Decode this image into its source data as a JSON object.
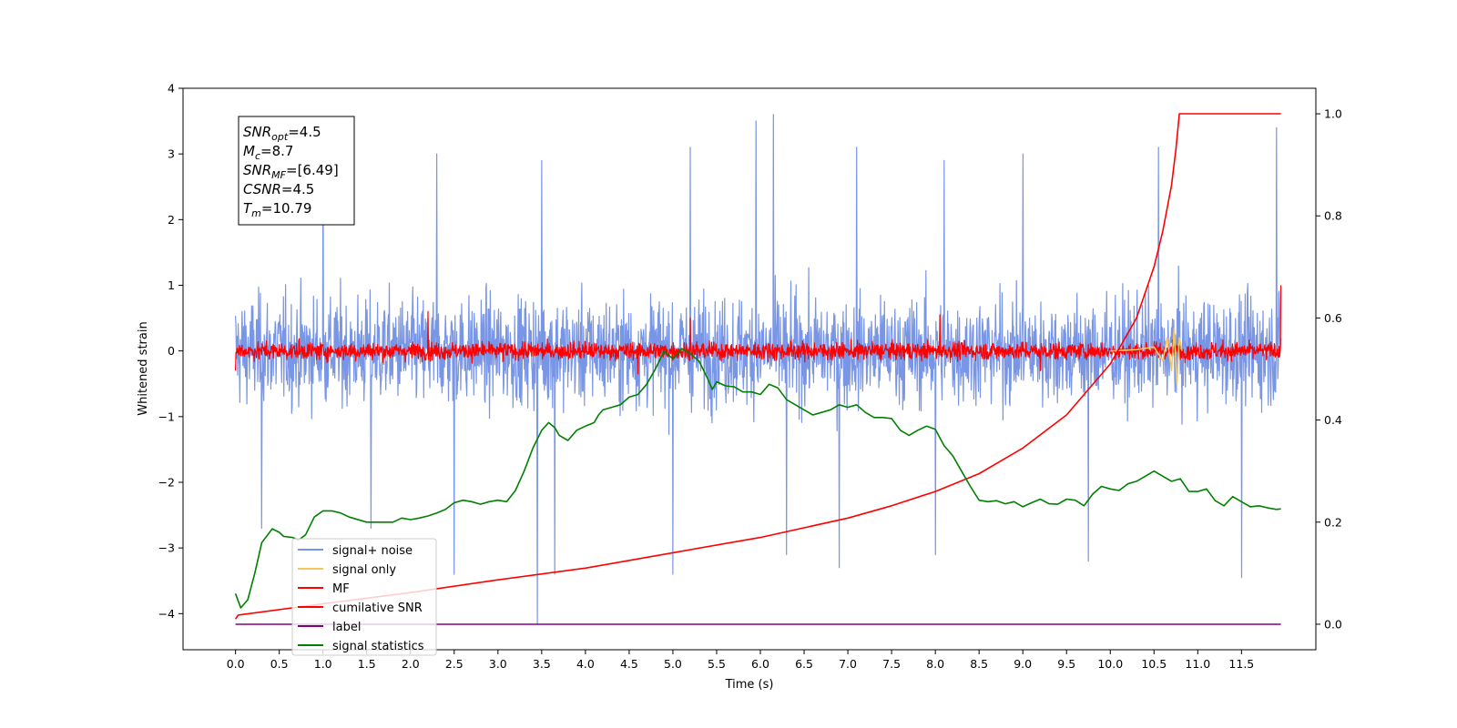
{
  "chart_data": {
    "type": "line",
    "xlabel": "Time (s)",
    "ylabel": "Whitened strain",
    "xlim": [
      -0.6,
      12.35
    ],
    "ylim": [
      -4.55,
      4.0
    ],
    "y2lim": [
      -0.05,
      1.05
    ],
    "x_ticks": [
      0.0,
      0.5,
      1.0,
      1.5,
      2.0,
      2.5,
      3.0,
      3.5,
      4.0,
      4.5,
      5.0,
      5.5,
      6.0,
      6.5,
      7.0,
      7.5,
      8.0,
      8.5,
      9.0,
      9.5,
      10.0,
      10.5,
      11.0,
      11.5
    ],
    "x_tick_labels": [
      "0.0",
      "0.5",
      "1.0",
      "1.5",
      "2.0",
      "2.5",
      "3.0",
      "3.5",
      "4.0",
      "4.5",
      "5.0",
      "5.5",
      "6.0",
      "6.5",
      "7.0",
      "7.5",
      "8.0",
      "8.5",
      "9.0",
      "9.5",
      "10.0",
      "10.5",
      "11.0",
      "11.5"
    ],
    "y_ticks": [
      4,
      3,
      2,
      1,
      0,
      -1,
      -2,
      -3,
      -4
    ],
    "y_tick_labels": [
      "4",
      "3",
      "2",
      "1",
      "0",
      "−1",
      "−2",
      "−3",
      "−4"
    ],
    "y2_ticks": [
      0.0,
      0.2,
      0.4,
      0.6,
      0.8,
      1.0
    ],
    "y2_tick_labels": [
      "0.0",
      "0.2",
      "0.4",
      "0.6",
      "0.8",
      "1.0"
    ],
    "grid": false,
    "legend_position": "lower-left",
    "annotation": [
      {
        "base": "SNR",
        "sub": "opt",
        "value": "=4.5"
      },
      {
        "base": "M",
        "sub": "c",
        "value": "=8.7"
      },
      {
        "base": "SNR",
        "sub": "MF",
        "value": "=[6.49]"
      },
      {
        "base": "CSNR",
        "sub": "",
        "value": "=4.5"
      },
      {
        "base": "T",
        "sub": "m",
        "value": "=10.79"
      }
    ],
    "series": [
      {
        "name": "signal+ noise",
        "color": "#7895e6",
        "axis": "left",
        "kind": "noise",
        "range": [
          0.0,
          11.95
        ],
        "amplitude": 1.1,
        "spikes_up": [
          [
            1.0,
            2.9
          ],
          [
            2.3,
            3.0
          ],
          [
            3.5,
            2.9
          ],
          [
            5.2,
            3.1
          ],
          [
            5.95,
            3.5
          ],
          [
            6.15,
            3.6
          ],
          [
            7.1,
            3.1
          ],
          [
            8.1,
            2.9
          ],
          [
            9.0,
            3.0
          ],
          [
            10.55,
            3.1
          ],
          [
            11.9,
            3.4
          ]
        ],
        "spikes_down": [
          [
            0.3,
            -2.7
          ],
          [
            1.55,
            -2.7
          ],
          [
            2.5,
            -3.4
          ],
          [
            3.45,
            -4.15
          ],
          [
            3.65,
            -3.4
          ],
          [
            5.0,
            -3.4
          ],
          [
            6.3,
            -3.1
          ],
          [
            6.9,
            -3.3
          ],
          [
            8.0,
            -3.1
          ],
          [
            9.75,
            -3.2
          ],
          [
            11.5,
            -3.45
          ]
        ]
      },
      {
        "name": "signal only",
        "color": "#f5c55e",
        "axis": "left",
        "kind": "chirp",
        "points": [
          [
            10.0,
            0.0
          ],
          [
            10.3,
            0.02
          ],
          [
            10.5,
            0.06
          ],
          [
            10.6,
            -0.15
          ],
          [
            10.65,
            0.2
          ],
          [
            10.7,
            -0.3
          ],
          [
            10.73,
            0.35
          ],
          [
            10.76,
            -0.5
          ],
          [
            10.79,
            0.2
          ],
          [
            10.82,
            0.0
          ]
        ]
      },
      {
        "name": "MF",
        "color": "#ff0000",
        "axis": "left",
        "kind": "noise",
        "range": [
          0.0,
          11.95
        ],
        "amplitude": 0.18,
        "spikes_up": [
          [
            0.0,
            0.9
          ],
          [
            2.2,
            0.6
          ],
          [
            5.2,
            0.5
          ],
          [
            8.05,
            0.55
          ],
          [
            11.95,
            1.0
          ]
        ],
        "spikes_down": [
          [
            0.0,
            -0.3
          ],
          [
            4.6,
            -0.35
          ],
          [
            9.2,
            -0.3
          ]
        ]
      },
      {
        "name": "cumilative SNR",
        "color": "#ff0000",
        "axis": "right",
        "kind": "line",
        "points": [
          [
            0.0,
            0.01
          ],
          [
            0.03,
            0.018
          ],
          [
            1.0,
            0.04
          ],
          [
            2.0,
            0.062
          ],
          [
            3.0,
            0.087
          ],
          [
            4.0,
            0.11
          ],
          [
            5.0,
            0.14
          ],
          [
            6.0,
            0.17
          ],
          [
            7.0,
            0.208
          ],
          [
            7.5,
            0.232
          ],
          [
            8.0,
            0.26
          ],
          [
            8.5,
            0.295
          ],
          [
            9.0,
            0.345
          ],
          [
            9.5,
            0.41
          ],
          [
            10.0,
            0.51
          ],
          [
            10.3,
            0.6
          ],
          [
            10.5,
            0.7
          ],
          [
            10.6,
            0.77
          ],
          [
            10.7,
            0.86
          ],
          [
            10.75,
            0.93
          ],
          [
            10.79,
            1.0
          ],
          [
            11.95,
            1.0
          ]
        ]
      },
      {
        "name": "label",
        "color": "#800080",
        "axis": "right",
        "kind": "line",
        "points": [
          [
            0.0,
            0.0
          ],
          [
            11.95,
            0.0
          ]
        ]
      },
      {
        "name": "signal statistics",
        "color": "#008000",
        "axis": "right",
        "kind": "line",
        "points": [
          [
            0.0,
            0.06
          ],
          [
            0.06,
            0.032
          ],
          [
            0.14,
            0.048
          ],
          [
            0.22,
            0.1
          ],
          [
            0.3,
            0.16
          ],
          [
            0.42,
            0.187
          ],
          [
            0.5,
            0.18
          ],
          [
            0.55,
            0.172
          ],
          [
            0.65,
            0.17
          ],
          [
            0.72,
            0.165
          ],
          [
            0.8,
            0.175
          ],
          [
            0.9,
            0.21
          ],
          [
            1.0,
            0.222
          ],
          [
            1.1,
            0.222
          ],
          [
            1.2,
            0.218
          ],
          [
            1.3,
            0.21
          ],
          [
            1.5,
            0.2
          ],
          [
            1.6,
            0.2
          ],
          [
            1.8,
            0.2
          ],
          [
            1.9,
            0.208
          ],
          [
            2.0,
            0.205
          ],
          [
            2.1,
            0.208
          ],
          [
            2.2,
            0.212
          ],
          [
            2.3,
            0.218
          ],
          [
            2.4,
            0.225
          ],
          [
            2.5,
            0.238
          ],
          [
            2.6,
            0.243
          ],
          [
            2.7,
            0.24
          ],
          [
            2.8,
            0.235
          ],
          [
            2.9,
            0.24
          ],
          [
            3.0,
            0.243
          ],
          [
            3.1,
            0.24
          ],
          [
            3.2,
            0.262
          ],
          [
            3.3,
            0.3
          ],
          [
            3.4,
            0.345
          ],
          [
            3.5,
            0.38
          ],
          [
            3.58,
            0.395
          ],
          [
            3.65,
            0.385
          ],
          [
            3.7,
            0.37
          ],
          [
            3.8,
            0.36
          ],
          [
            3.9,
            0.38
          ],
          [
            4.0,
            0.388
          ],
          [
            4.1,
            0.395
          ],
          [
            4.15,
            0.41
          ],
          [
            4.2,
            0.42
          ],
          [
            4.3,
            0.425
          ],
          [
            4.4,
            0.43
          ],
          [
            4.5,
            0.445
          ],
          [
            4.6,
            0.45
          ],
          [
            4.7,
            0.47
          ],
          [
            4.8,
            0.5
          ],
          [
            4.9,
            0.535
          ],
          [
            5.0,
            0.52
          ],
          [
            5.1,
            0.54
          ],
          [
            5.2,
            0.53
          ],
          [
            5.3,
            0.515
          ],
          [
            5.4,
            0.48
          ],
          [
            5.45,
            0.46
          ],
          [
            5.5,
            0.475
          ],
          [
            5.6,
            0.467
          ],
          [
            5.7,
            0.465
          ],
          [
            5.8,
            0.455
          ],
          [
            5.9,
            0.455
          ],
          [
            6.0,
            0.45
          ],
          [
            6.1,
            0.47
          ],
          [
            6.2,
            0.463
          ],
          [
            6.3,
            0.44
          ],
          [
            6.4,
            0.43
          ],
          [
            6.5,
            0.42
          ],
          [
            6.6,
            0.41
          ],
          [
            6.7,
            0.415
          ],
          [
            6.8,
            0.42
          ],
          [
            6.9,
            0.43
          ],
          [
            7.0,
            0.425
          ],
          [
            7.1,
            0.43
          ],
          [
            7.2,
            0.415
          ],
          [
            7.3,
            0.405
          ],
          [
            7.4,
            0.405
          ],
          [
            7.5,
            0.403
          ],
          [
            7.6,
            0.38
          ],
          [
            7.7,
            0.37
          ],
          [
            7.8,
            0.38
          ],
          [
            7.9,
            0.388
          ],
          [
            8.0,
            0.382
          ],
          [
            8.1,
            0.35
          ],
          [
            8.2,
            0.33
          ],
          [
            8.3,
            0.3
          ],
          [
            8.4,
            0.27
          ],
          [
            8.5,
            0.243
          ],
          [
            8.6,
            0.24
          ],
          [
            8.7,
            0.242
          ],
          [
            8.8,
            0.236
          ],
          [
            8.9,
            0.24
          ],
          [
            9.0,
            0.23
          ],
          [
            9.1,
            0.238
          ],
          [
            9.2,
            0.245
          ],
          [
            9.3,
            0.236
          ],
          [
            9.4,
            0.235
          ],
          [
            9.5,
            0.245
          ],
          [
            9.6,
            0.243
          ],
          [
            9.7,
            0.232
          ],
          [
            9.8,
            0.255
          ],
          [
            9.9,
            0.27
          ],
          [
            10.0,
            0.265
          ],
          [
            10.1,
            0.262
          ],
          [
            10.2,
            0.275
          ],
          [
            10.3,
            0.28
          ],
          [
            10.4,
            0.29
          ],
          [
            10.5,
            0.3
          ],
          [
            10.6,
            0.29
          ],
          [
            10.7,
            0.28
          ],
          [
            10.8,
            0.285
          ],
          [
            10.9,
            0.26
          ],
          [
            11.0,
            0.26
          ],
          [
            11.1,
            0.265
          ],
          [
            11.2,
            0.242
          ],
          [
            11.3,
            0.232
          ],
          [
            11.4,
            0.25
          ],
          [
            11.5,
            0.24
          ],
          [
            11.6,
            0.23
          ],
          [
            11.7,
            0.232
          ],
          [
            11.8,
            0.228
          ],
          [
            11.9,
            0.225
          ],
          [
            11.95,
            0.226
          ]
        ]
      }
    ]
  }
}
